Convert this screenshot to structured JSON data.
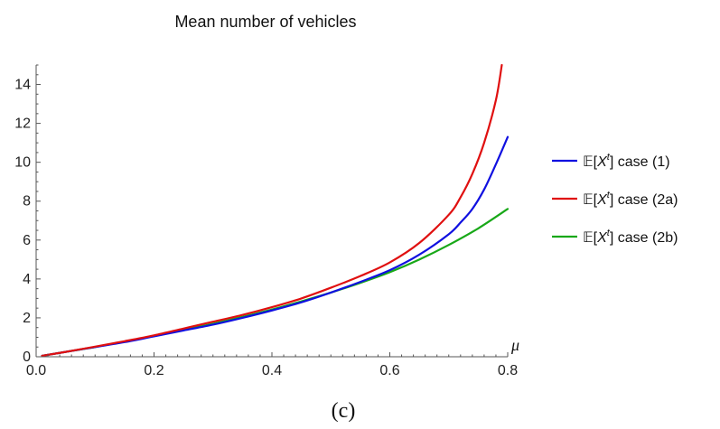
{
  "chart_data": {
    "type": "line",
    "title": "Mean number of vehicles",
    "xlabel": "μ",
    "ylabel": "",
    "caption": "(c)",
    "xlim": [
      0,
      0.8
    ],
    "ylim": [
      0,
      15
    ],
    "xticks": [
      0.0,
      0.2,
      0.4,
      0.6,
      0.8
    ],
    "xtick_labels": [
      "0.0",
      "0.2",
      "0.4",
      "0.6",
      "0.8"
    ],
    "yticks": [
      0,
      2,
      4,
      6,
      8,
      10,
      12,
      14
    ],
    "ytick_labels": [
      "0",
      "2",
      "4",
      "6",
      "8",
      "10",
      "12",
      "14"
    ],
    "grid": false,
    "legend_position": "right",
    "series": [
      {
        "name": "𝔼[Xᵗ] case (1)",
        "legend": {
          "prefix": "𝔼[",
          "var": "X",
          "sup": "t",
          "suffix": "] case (1)"
        },
        "color": "#1010e0",
        "points": [
          [
            0.01,
            0.05
          ],
          [
            0.05,
            0.25
          ],
          [
            0.1,
            0.5
          ],
          [
            0.15,
            0.75
          ],
          [
            0.2,
            1.05
          ],
          [
            0.25,
            1.35
          ],
          [
            0.3,
            1.65
          ],
          [
            0.35,
            2.0
          ],
          [
            0.4,
            2.38
          ],
          [
            0.45,
            2.8
          ],
          [
            0.5,
            3.3
          ],
          [
            0.55,
            3.85
          ],
          [
            0.6,
            4.45
          ],
          [
            0.65,
            5.25
          ],
          [
            0.7,
            6.3
          ],
          [
            0.72,
            6.9
          ],
          [
            0.74,
            7.6
          ],
          [
            0.76,
            8.6
          ],
          [
            0.78,
            9.9
          ],
          [
            0.8,
            11.3
          ]
        ]
      },
      {
        "name": "𝔼[Xᵗ] case (2a)",
        "legend": {
          "prefix": "𝔼[",
          "var": "X",
          "sup": "t",
          "suffix": "] case (2a)"
        },
        "color": "#e01010",
        "points": [
          [
            0.01,
            0.05
          ],
          [
            0.05,
            0.25
          ],
          [
            0.1,
            0.52
          ],
          [
            0.15,
            0.8
          ],
          [
            0.2,
            1.1
          ],
          [
            0.25,
            1.45
          ],
          [
            0.3,
            1.8
          ],
          [
            0.35,
            2.15
          ],
          [
            0.4,
            2.55
          ],
          [
            0.45,
            3.0
          ],
          [
            0.5,
            3.55
          ],
          [
            0.55,
            4.15
          ],
          [
            0.6,
            4.85
          ],
          [
            0.65,
            5.85
          ],
          [
            0.7,
            7.3
          ],
          [
            0.72,
            8.2
          ],
          [
            0.74,
            9.4
          ],
          [
            0.76,
            11.0
          ],
          [
            0.78,
            13.2
          ],
          [
            0.79,
            15.0
          ]
        ]
      },
      {
        "name": "𝔼[Xᵗ] case (2b)",
        "legend": {
          "prefix": "𝔼[",
          "var": "X",
          "sup": "t",
          "suffix": "] case (2b)"
        },
        "color": "#18a818",
        "points": [
          [
            0.01,
            0.05
          ],
          [
            0.05,
            0.25
          ],
          [
            0.1,
            0.5
          ],
          [
            0.15,
            0.78
          ],
          [
            0.2,
            1.07
          ],
          [
            0.25,
            1.38
          ],
          [
            0.3,
            1.7
          ],
          [
            0.35,
            2.05
          ],
          [
            0.4,
            2.43
          ],
          [
            0.45,
            2.85
          ],
          [
            0.5,
            3.3
          ],
          [
            0.55,
            3.8
          ],
          [
            0.6,
            4.35
          ],
          [
            0.65,
            5.0
          ],
          [
            0.7,
            5.75
          ],
          [
            0.75,
            6.6
          ],
          [
            0.8,
            7.6
          ]
        ]
      }
    ]
  }
}
